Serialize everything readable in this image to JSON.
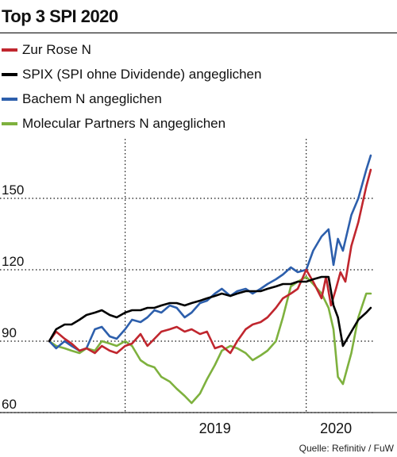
{
  "title": "Top 3 SPI 2020",
  "source": "Quelle: Refinitiv / FuW",
  "chart_data": {
    "type": "line",
    "yticks": [
      60,
      90,
      120,
      150
    ],
    "ylim": [
      60,
      175
    ],
    "xlim": [
      "2018-08-01",
      "2020-05-15"
    ],
    "xticks": [
      {
        "label": "2019",
        "date": "2019-07-01"
      },
      {
        "label": "2020",
        "date": "2020-03-01"
      }
    ],
    "vgrid_dates": [
      "2019-01-01",
      "2020-01-01"
    ],
    "grid": true,
    "legend_position": "top",
    "series": [
      {
        "name": "Zur Rose N",
        "color": "#c0262e",
        "points": [
          [
            "2018-08-01",
            90
          ],
          [
            "2018-08-15",
            94
          ],
          [
            "2018-09-01",
            91
          ],
          [
            "2018-09-15",
            89
          ],
          [
            "2018-10-01",
            86
          ],
          [
            "2018-10-15",
            87
          ],
          [
            "2018-11-01",
            85
          ],
          [
            "2018-11-15",
            88
          ],
          [
            "2018-12-01",
            86
          ],
          [
            "2018-12-15",
            85
          ],
          [
            "2019-01-01",
            88
          ],
          [
            "2019-01-15",
            89
          ],
          [
            "2019-02-01",
            93
          ],
          [
            "2019-02-15",
            88
          ],
          [
            "2019-03-01",
            91
          ],
          [
            "2019-03-15",
            94
          ],
          [
            "2019-04-01",
            95
          ],
          [
            "2019-04-15",
            96
          ],
          [
            "2019-05-01",
            94
          ],
          [
            "2019-05-15",
            95
          ],
          [
            "2019-06-01",
            93
          ],
          [
            "2019-06-15",
            94
          ],
          [
            "2019-07-01",
            87
          ],
          [
            "2019-07-15",
            88
          ],
          [
            "2019-08-01",
            85
          ],
          [
            "2019-08-15",
            90
          ],
          [
            "2019-09-01",
            95
          ],
          [
            "2019-09-15",
            97
          ],
          [
            "2019-10-01",
            98
          ],
          [
            "2019-10-15",
            100
          ],
          [
            "2019-11-01",
            104
          ],
          [
            "2019-11-15",
            108
          ],
          [
            "2019-12-01",
            110
          ],
          [
            "2019-12-15",
            112
          ],
          [
            "2020-01-01",
            120
          ],
          [
            "2020-01-15",
            115
          ],
          [
            "2020-02-01",
            108
          ],
          [
            "2020-02-10",
            117
          ],
          [
            "2020-02-20",
            105
          ],
          [
            "2020-03-01",
            112
          ],
          [
            "2020-03-10",
            119
          ],
          [
            "2020-03-20",
            115
          ],
          [
            "2020-04-01",
            130
          ],
          [
            "2020-04-15",
            140
          ],
          [
            "2020-05-01",
            155
          ],
          [
            "2020-05-10",
            162
          ]
        ]
      },
      {
        "name": "SPIX (SPI ohne Dividende) angeglichen",
        "color": "#000000",
        "points": [
          [
            "2018-08-01",
            90
          ],
          [
            "2018-08-15",
            95
          ],
          [
            "2018-09-01",
            97
          ],
          [
            "2018-09-15",
            97
          ],
          [
            "2018-10-01",
            99
          ],
          [
            "2018-10-15",
            101
          ],
          [
            "2018-11-01",
            102
          ],
          [
            "2018-11-15",
            103
          ],
          [
            "2018-12-01",
            101
          ],
          [
            "2018-12-15",
            100
          ],
          [
            "2019-01-01",
            102
          ],
          [
            "2019-01-15",
            103
          ],
          [
            "2019-02-01",
            103
          ],
          [
            "2019-02-15",
            104
          ],
          [
            "2019-03-01",
            104
          ],
          [
            "2019-03-15",
            105
          ],
          [
            "2019-04-01",
            106
          ],
          [
            "2019-04-15",
            106
          ],
          [
            "2019-05-01",
            105
          ],
          [
            "2019-05-15",
            106
          ],
          [
            "2019-06-01",
            107
          ],
          [
            "2019-06-15",
            108
          ],
          [
            "2019-07-01",
            109
          ],
          [
            "2019-07-15",
            110
          ],
          [
            "2019-08-01",
            109
          ],
          [
            "2019-08-15",
            110
          ],
          [
            "2019-09-01",
            111
          ],
          [
            "2019-09-15",
            111
          ],
          [
            "2019-10-01",
            111
          ],
          [
            "2019-10-15",
            112
          ],
          [
            "2019-11-01",
            113
          ],
          [
            "2019-11-15",
            114
          ],
          [
            "2019-12-01",
            114
          ],
          [
            "2019-12-15",
            115
          ],
          [
            "2020-01-01",
            115
          ],
          [
            "2020-01-15",
            116
          ],
          [
            "2020-02-01",
            117
          ],
          [
            "2020-02-15",
            117
          ],
          [
            "2020-02-25",
            105
          ],
          [
            "2020-03-05",
            100
          ],
          [
            "2020-03-15",
            88
          ],
          [
            "2020-04-01",
            94
          ],
          [
            "2020-04-15",
            99
          ],
          [
            "2020-05-01",
            102
          ],
          [
            "2020-05-10",
            104
          ]
        ]
      },
      {
        "name": "Bachem N angeglichen",
        "color": "#2d5fac",
        "points": [
          [
            "2018-08-01",
            90
          ],
          [
            "2018-08-15",
            87
          ],
          [
            "2018-09-01",
            90
          ],
          [
            "2018-09-15",
            88
          ],
          [
            "2018-10-01",
            86
          ],
          [
            "2018-10-15",
            87
          ],
          [
            "2018-11-01",
            95
          ],
          [
            "2018-11-15",
            96
          ],
          [
            "2018-12-01",
            92
          ],
          [
            "2018-12-15",
            91
          ],
          [
            "2019-01-01",
            95
          ],
          [
            "2019-01-15",
            99
          ],
          [
            "2019-02-01",
            98
          ],
          [
            "2019-02-15",
            100
          ],
          [
            "2019-03-01",
            103
          ],
          [
            "2019-03-15",
            102
          ],
          [
            "2019-04-01",
            105
          ],
          [
            "2019-04-15",
            104
          ],
          [
            "2019-05-01",
            100
          ],
          [
            "2019-05-15",
            102
          ],
          [
            "2019-06-01",
            106
          ],
          [
            "2019-06-15",
            107
          ],
          [
            "2019-07-01",
            110
          ],
          [
            "2019-07-15",
            112
          ],
          [
            "2019-08-01",
            109
          ],
          [
            "2019-08-15",
            111
          ],
          [
            "2019-09-01",
            112
          ],
          [
            "2019-09-15",
            110
          ],
          [
            "2019-10-01",
            112
          ],
          [
            "2019-10-15",
            114
          ],
          [
            "2019-11-01",
            116
          ],
          [
            "2019-11-15",
            118
          ],
          [
            "2019-12-01",
            121
          ],
          [
            "2019-12-15",
            119
          ],
          [
            "2020-01-01",
            120
          ],
          [
            "2020-01-15",
            128
          ],
          [
            "2020-02-01",
            134
          ],
          [
            "2020-02-15",
            137
          ],
          [
            "2020-02-25",
            122
          ],
          [
            "2020-03-05",
            133
          ],
          [
            "2020-03-15",
            128
          ],
          [
            "2020-04-01",
            143
          ],
          [
            "2020-04-15",
            150
          ],
          [
            "2020-05-01",
            162
          ],
          [
            "2020-05-10",
            168
          ]
        ]
      },
      {
        "name": "Molecular Partners N angeglichen",
        "color": "#7eb13e",
        "points": [
          [
            "2018-08-01",
            90
          ],
          [
            "2018-08-15",
            88
          ],
          [
            "2018-09-01",
            87
          ],
          [
            "2018-09-15",
            86
          ],
          [
            "2018-10-01",
            85
          ],
          [
            "2018-10-15",
            87
          ],
          [
            "2018-11-01",
            86
          ],
          [
            "2018-11-15",
            90
          ],
          [
            "2018-12-01",
            89
          ],
          [
            "2018-12-15",
            88
          ],
          [
            "2019-01-01",
            90
          ],
          [
            "2019-01-15",
            88
          ],
          [
            "2019-02-01",
            82
          ],
          [
            "2019-02-15",
            80
          ],
          [
            "2019-03-01",
            79
          ],
          [
            "2019-03-15",
            75
          ],
          [
            "2019-04-01",
            73
          ],
          [
            "2019-04-15",
            70
          ],
          [
            "2019-05-01",
            67
          ],
          [
            "2019-05-15",
            64
          ],
          [
            "2019-06-01",
            68
          ],
          [
            "2019-06-15",
            74
          ],
          [
            "2019-07-01",
            80
          ],
          [
            "2019-07-15",
            86
          ],
          [
            "2019-08-01",
            88
          ],
          [
            "2019-08-15",
            87
          ],
          [
            "2019-09-01",
            85
          ],
          [
            "2019-09-15",
            82
          ],
          [
            "2019-10-01",
            84
          ],
          [
            "2019-10-15",
            86
          ],
          [
            "2019-11-01",
            90
          ],
          [
            "2019-11-15",
            100
          ],
          [
            "2019-12-01",
            113
          ],
          [
            "2019-12-15",
            115
          ],
          [
            "2020-01-01",
            117
          ],
          [
            "2020-01-15",
            114
          ],
          [
            "2020-02-01",
            110
          ],
          [
            "2020-02-15",
            104
          ],
          [
            "2020-02-25",
            95
          ],
          [
            "2020-03-05",
            75
          ],
          [
            "2020-03-15",
            72
          ],
          [
            "2020-04-01",
            85
          ],
          [
            "2020-04-15",
            100
          ],
          [
            "2020-05-01",
            110
          ],
          [
            "2020-05-10",
            110
          ]
        ]
      }
    ]
  }
}
